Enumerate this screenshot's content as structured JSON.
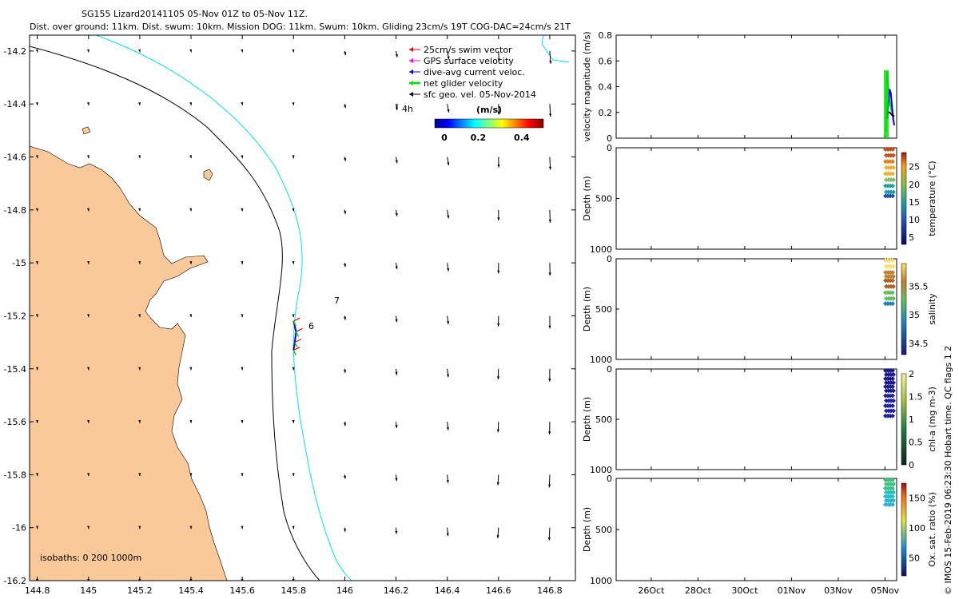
{
  "header": {
    "line1": "SG155 Lizard20141105 05-Nov 01Z to 05-Nov 11Z.",
    "line2": "Dist. over ground: 11km. Dist. swum: 10km. Mission DOG: 11km. Swum: 10km. Gliding 23cm/s 19T COG-DAC=24cm/s 21T"
  },
  "credit": "© IMOS 15-Feb-2019 06:23:30 Hobart time. QC flags 1  2",
  "colors": {
    "land": "#f9c99a",
    "isobath_200": "#000000",
    "isobath_1000": "#00e5ee",
    "swim": "#ff0000",
    "gps": "#ff00ff",
    "dac": "#0000ff",
    "net": "#00dd00",
    "geo": "#000000"
  },
  "chart_data": [
    {
      "type": "scatter",
      "id": "map",
      "xlabel": "",
      "ylabel": "",
      "xlim": [
        144.77,
        146.9
      ],
      "ylim": [
        -16.2,
        -14.14
      ],
      "xticks": [
        "144.8",
        "145",
        "145.2",
        "145.4",
        "145.6",
        "145.8",
        "146",
        "146.2",
        "146.4",
        "146.6",
        "146.8"
      ],
      "yticks": [
        "-14.2",
        "-14.4",
        "-14.6",
        "-14.8",
        "-15",
        "-15.2",
        "-15.4",
        "-15.6",
        "-15.8",
        "-16",
        "-16.2"
      ],
      "legend": {
        "position": "top-right",
        "entries": [
          "25cm/s swim vector",
          "GPS surface velocity",
          "dive-avg current veloc.",
          "net glider velocity",
          "sfc geo. vel. 05-Nov-2014"
        ],
        "scale_label": "4h"
      },
      "colorbar": {
        "title": "(m/s)",
        "ticks": [
          "0",
          "0.2",
          "0.4"
        ],
        "range": [
          0,
          0.5
        ]
      },
      "isobath_label": "isobaths: 0   200  1000m",
      "annotations": [
        {
          "text": "6",
          "lon": 145.835,
          "lat": -15.24
        },
        {
          "text": "7",
          "lon": 145.965,
          "lat": -15.14
        }
      ],
      "glider_track": [
        [
          145.8,
          -15.22
        ],
        [
          145.81,
          -15.26
        ],
        [
          145.805,
          -15.3
        ],
        [
          145.8,
          -15.33
        ]
      ],
      "geo_vectors_grid": {
        "lons": [
          144.8,
          145.0,
          145.2,
          145.4,
          145.6,
          145.8,
          146.0,
          146.2,
          146.4,
          146.6,
          146.8
        ],
        "lats": [
          -14.2,
          -14.4,
          -14.6,
          -14.8,
          -15.0,
          -15.2,
          -15.4,
          -15.6,
          -15.8,
          -16.0,
          -16.2
        ]
      }
    },
    {
      "type": "line",
      "id": "velocity",
      "ylabel": "velocity magnitude (m/s)",
      "ylim": [
        0,
        0.8
      ],
      "yticks": [
        "0",
        "0.2",
        "0.4",
        "0.6",
        "0.8"
      ],
      "series": [
        {
          "color": "green",
          "x": [
            5.05,
            5.08,
            5.1,
            5.12,
            5.15,
            5.18,
            5.2,
            5.25,
            5.3
          ],
          "y": [
            0.05,
            0.5,
            0.52,
            0.45,
            0.38,
            0.32,
            0.28,
            0.24,
            0.2
          ]
        },
        {
          "color": "blue",
          "x": [
            5.1,
            5.15,
            5.2,
            5.25,
            5.3,
            5.35,
            5.4
          ],
          "y": [
            0.15,
            0.28,
            0.38,
            0.35,
            0.25,
            0.15,
            0.1
          ]
        },
        {
          "color": "black",
          "x": [
            5.1,
            5.2,
            5.3,
            5.4
          ],
          "y": [
            0.2,
            0.2,
            0.18,
            0.17
          ]
        }
      ]
    },
    {
      "type": "scatter",
      "id": "temperature",
      "ylabel": "Depth (m)",
      "ylim": [
        1000,
        0
      ],
      "yticks": [
        "0",
        "500",
        "1000"
      ],
      "colorbar_label": "temperature (°C)",
      "colorbar_ticks": [
        "5",
        "10",
        "15",
        "20",
        "25"
      ],
      "crange": [
        3,
        29
      ]
    },
    {
      "type": "scatter",
      "id": "salinity",
      "ylabel": "Depth (m)",
      "ylim": [
        1000,
        0
      ],
      "yticks": [
        "0",
        "500",
        "1000"
      ],
      "colorbar_label": "salinity",
      "colorbar_ticks": [
        "34.5",
        "35",
        "35.5"
      ],
      "crange": [
        34.3,
        35.9
      ]
    },
    {
      "type": "scatter",
      "id": "chla",
      "ylabel": "Depth (m)",
      "ylim": [
        1000,
        0
      ],
      "yticks": [
        "0",
        "500",
        "1000"
      ],
      "colorbar_label": "chl-a (mg m-3)",
      "colorbar_ticks": [
        "0",
        "0.5",
        "1",
        "1.5",
        "2"
      ],
      "crange": [
        0,
        2
      ]
    },
    {
      "type": "scatter",
      "id": "oxygen",
      "ylabel": "Depth (m)",
      "ylim": [
        1000,
        0
      ],
      "yticks": [
        "0",
        "500",
        "1000"
      ],
      "colorbar_label": "Ox. sat. ratio (%)",
      "colorbar_ticks": [
        "50",
        "100",
        "150"
      ],
      "crange": [
        20,
        175
      ]
    }
  ],
  "time_axis": {
    "labels": [
      "26Oct",
      "28Oct",
      "30Oct",
      "01Nov",
      "03Nov",
      "05Nov"
    ],
    "positions_days": [
      26,
      28,
      30,
      32,
      34,
      36
    ],
    "range_days": [
      24.5,
      36.5
    ]
  }
}
